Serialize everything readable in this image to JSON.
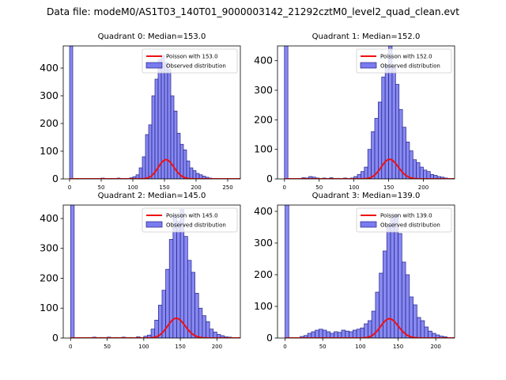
{
  "figure": {
    "title": "Data file: modeM0/AS1T03_140T01_9000003142_21292cztM0_level2_quad_clean.evt",
    "colors": {
      "hist_fill": "#7b7bf0",
      "hist_edge": "#22228a",
      "poisson_line": "#ee1111",
      "axis": "#000000"
    }
  },
  "chart_data": [
    {
      "type": "bar",
      "title": "Quadrant 0: Median=153.0",
      "xlim": [
        -10,
        270
      ],
      "ylim": [
        0,
        480
      ],
      "xticks": [
        0,
        50,
        100,
        150,
        200,
        250
      ],
      "yticks": [
        0,
        100,
        200,
        300,
        400
      ],
      "xticklabels": [
        "0",
        "50",
        "100",
        "150",
        "200",
        "250"
      ],
      "yticklabels": [
        "0",
        "100",
        "200",
        "300",
        "400"
      ],
      "bin_width": 5,
      "legend": {
        "location": "top-right",
        "entries": [
          "Poisson with 153.0",
          "Observed distribution"
        ]
      },
      "poisson_mean": 153.0,
      "poisson_scale": 2150,
      "bins": [
        [
          0,
          480
        ],
        [
          50,
          3
        ],
        [
          65,
          2
        ],
        [
          75,
          3
        ],
        [
          85,
          2
        ],
        [
          95,
          4
        ],
        [
          100,
          8
        ],
        [
          105,
          15
        ],
        [
          110,
          40
        ],
        [
          115,
          80
        ],
        [
          120,
          160
        ],
        [
          125,
          195
        ],
        [
          130,
          300
        ],
        [
          135,
          360
        ],
        [
          140,
          430
        ],
        [
          145,
          445
        ],
        [
          150,
          420
        ],
        [
          155,
          395
        ],
        [
          160,
          300
        ],
        [
          165,
          245
        ],
        [
          170,
          165
        ],
        [
          175,
          125
        ],
        [
          180,
          105
        ],
        [
          185,
          65
        ],
        [
          190,
          40
        ],
        [
          195,
          30
        ],
        [
          200,
          20
        ],
        [
          205,
          15
        ],
        [
          210,
          10
        ],
        [
          215,
          6
        ],
        [
          220,
          3
        ],
        [
          230,
          2
        ]
      ]
    },
    {
      "type": "bar",
      "title": "Quadrant 1: Median=152.0",
      "xlim": [
        -10,
        245
      ],
      "ylim": [
        0,
        450
      ],
      "xticks": [
        0,
        50,
        100,
        150,
        200
      ],
      "yticks": [
        0,
        100,
        200,
        300,
        400
      ],
      "xticklabels": [
        "0",
        "50",
        "100",
        "150",
        "200"
      ],
      "yticklabels": [
        "0",
        "100",
        "200",
        "300",
        "400"
      ],
      "bin_width": 5,
      "legend": {
        "location": "top-right",
        "entries": [
          "Poisson with 152.0",
          "Observed distribution"
        ]
      },
      "poisson_mean": 152.0,
      "poisson_scale": 2050,
      "bins": [
        [
          0,
          450
        ],
        [
          25,
          4
        ],
        [
          30,
          3
        ],
        [
          35,
          8
        ],
        [
          40,
          6
        ],
        [
          45,
          3
        ],
        [
          55,
          3
        ],
        [
          65,
          4
        ],
        [
          75,
          2
        ],
        [
          85,
          3
        ],
        [
          95,
          3
        ],
        [
          100,
          8
        ],
        [
          105,
          15
        ],
        [
          110,
          25
        ],
        [
          115,
          40
        ],
        [
          120,
          100
        ],
        [
          125,
          160
        ],
        [
          130,
          205
        ],
        [
          135,
          260
        ],
        [
          140,
          345
        ],
        [
          145,
          385
        ],
        [
          150,
          450
        ],
        [
          155,
          380
        ],
        [
          160,
          320
        ],
        [
          165,
          235
        ],
        [
          170,
          175
        ],
        [
          175,
          125
        ],
        [
          180,
          95
        ],
        [
          185,
          65
        ],
        [
          190,
          55
        ],
        [
          195,
          40
        ],
        [
          200,
          30
        ],
        [
          205,
          25
        ],
        [
          210,
          15
        ],
        [
          215,
          12
        ],
        [
          220,
          8
        ],
        [
          225,
          6
        ],
        [
          230,
          3
        ]
      ]
    },
    {
      "type": "bar",
      "title": "Quadrant 2: Median=145.0",
      "xlim": [
        -10,
        232
      ],
      "ylim": [
        0,
        445
      ],
      "xticks": [
        0,
        50,
        100,
        150,
        200
      ],
      "yticks": [
        0,
        100,
        200,
        300,
        400
      ],
      "xticklabels": [
        "0",
        "50",
        "100",
        "150",
        "200"
      ],
      "yticklabels": [
        "0",
        "100",
        "200",
        "300",
        "400"
      ],
      "bin_width": 5,
      "legend": {
        "location": "top-right",
        "entries": [
          "Poisson with 145.0",
          "Observed distribution"
        ]
      },
      "poisson_mean": 145.0,
      "poisson_scale": 2000,
      "bins": [
        [
          0,
          445
        ],
        [
          30,
          3
        ],
        [
          40,
          2
        ],
        [
          50,
          3
        ],
        [
          60,
          2
        ],
        [
          70,
          3
        ],
        [
          80,
          2
        ],
        [
          90,
          4
        ],
        [
          100,
          6
        ],
        [
          105,
          10
        ],
        [
          110,
          30
        ],
        [
          115,
          60
        ],
        [
          120,
          110
        ],
        [
          125,
          160
        ],
        [
          130,
          230
        ],
        [
          135,
          330
        ],
        [
          140,
          410
        ],
        [
          145,
          390
        ],
        [
          150,
          430
        ],
        [
          155,
          340
        ],
        [
          160,
          260
        ],
        [
          165,
          220
        ],
        [
          170,
          150
        ],
        [
          175,
          100
        ],
        [
          180,
          75
        ],
        [
          185,
          55
        ],
        [
          190,
          30
        ],
        [
          195,
          20
        ],
        [
          200,
          12
        ],
        [
          205,
          8
        ],
        [
          210,
          4
        ],
        [
          215,
          3
        ]
      ]
    },
    {
      "type": "bar",
      "title": "Quadrant 3: Median=139.0",
      "xlim": [
        -10,
        225
      ],
      "ylim": [
        0,
        420
      ],
      "xticks": [
        0,
        50,
        100,
        150,
        200
      ],
      "yticks": [
        0,
        100,
        200,
        300,
        400
      ],
      "xticklabels": [
        "0",
        "50",
        "100",
        "150",
        "200"
      ],
      "yticklabels": [
        "0",
        "100",
        "200",
        "300",
        "400"
      ],
      "bin_width": 5,
      "legend": {
        "location": "top-right",
        "entries": [
          "Poisson with 139.0",
          "Observed distribution"
        ]
      },
      "poisson_mean": 139.0,
      "poisson_scale": 1800,
      "bins": [
        [
          0,
          420
        ],
        [
          20,
          5
        ],
        [
          25,
          8
        ],
        [
          30,
          15
        ],
        [
          35,
          20
        ],
        [
          40,
          25
        ],
        [
          45,
          28
        ],
        [
          50,
          25
        ],
        [
          55,
          20
        ],
        [
          60,
          15
        ],
        [
          65,
          20
        ],
        [
          70,
          18
        ],
        [
          75,
          25
        ],
        [
          80,
          22
        ],
        [
          85,
          20
        ],
        [
          90,
          25
        ],
        [
          95,
          28
        ],
        [
          100,
          32
        ],
        [
          105,
          45
        ],
        [
          110,
          55
        ],
        [
          115,
          85
        ],
        [
          120,
          145
        ],
        [
          125,
          205
        ],
        [
          130,
          275
        ],
        [
          135,
          355
        ],
        [
          140,
          380
        ],
        [
          145,
          390
        ],
        [
          150,
          330
        ],
        [
          155,
          240
        ],
        [
          160,
          200
        ],
        [
          165,
          130
        ],
        [
          170,
          105
        ],
        [
          175,
          65
        ],
        [
          180,
          55
        ],
        [
          185,
          35
        ],
        [
          190,
          22
        ],
        [
          195,
          15
        ],
        [
          200,
          10
        ],
        [
          205,
          6
        ],
        [
          210,
          4
        ]
      ]
    }
  ]
}
